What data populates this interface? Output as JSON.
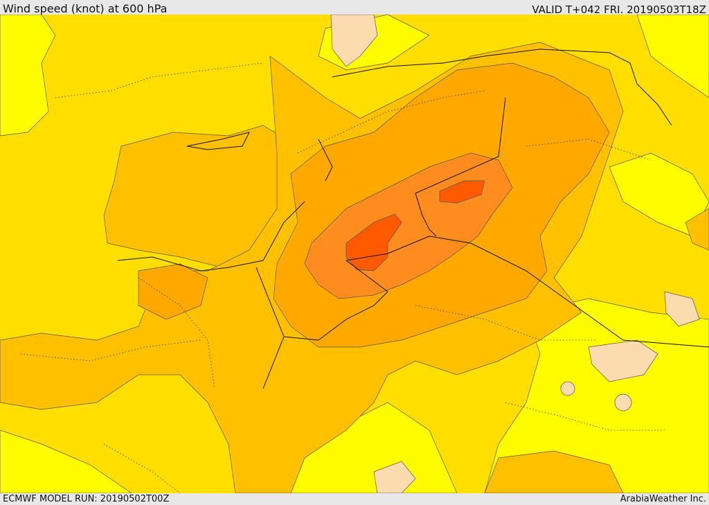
{
  "header": {
    "title": "Wind speed (knot) at 600 hPa",
    "valid": "VALID T+042 FRI. 20190503T18Z"
  },
  "footer": {
    "model_run": "ECMWF MODEL RUN: 20190502T00Z",
    "credit": "ArabiaWeather Inc."
  },
  "colors": {
    "lightest": "#fcdcae",
    "yellow": "#fffc00",
    "gold": "#ffde00",
    "amber": "#ffc000",
    "orange_light": "#ffa800",
    "orange": "#ff8c1e",
    "orange_dark": "#ff5a00",
    "contour": "#555555",
    "border": "#111111"
  }
}
